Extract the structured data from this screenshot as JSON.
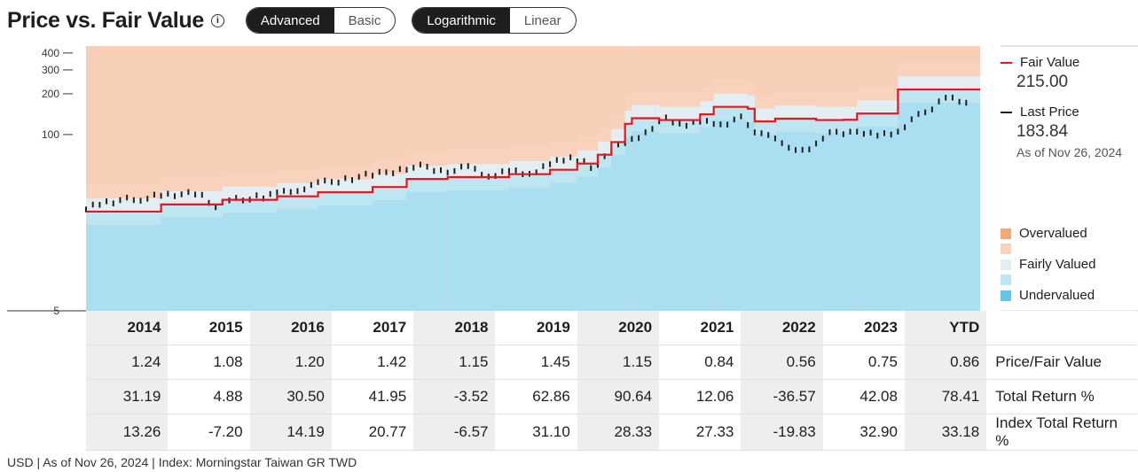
{
  "header": {
    "title": "Price vs. Fair Value",
    "info_icon": "i",
    "toggle_view": {
      "options": [
        "Advanced",
        "Basic"
      ],
      "selected": "Advanced"
    },
    "toggle_scale": {
      "options": [
        "Logarithmic",
        "Linear"
      ],
      "selected": "Logarithmic"
    }
  },
  "legend": {
    "fair_value_label": "Fair Value",
    "fair_value": "215.00",
    "last_price_label": "Last Price",
    "last_price": "183.84",
    "as_of": "As of Nov 26, 2024",
    "bands": [
      {
        "label": "Overvalued",
        "color": "#f4a777"
      },
      {
        "label": "",
        "color": "#f8d2bd"
      },
      {
        "label": "Fairly Valued",
        "color": "#e3eef3"
      },
      {
        "label": "",
        "color": "#bde6f2"
      },
      {
        "label": "Undervalued",
        "color": "#63c6e8"
      }
    ]
  },
  "chart_data": {
    "type": "line",
    "y_scale": "log",
    "y_ticks": [
      400,
      300,
      200,
      100,
      5
    ],
    "ylim": [
      5,
      450
    ],
    "periods": [
      "2014",
      "2015",
      "2016",
      "2017",
      "2018",
      "2019",
      "2020",
      "2021",
      "2022",
      "2023",
      "YTD"
    ],
    "series": [
      {
        "name": "Fair Value",
        "color": "#e8141e",
        "steps": [
          [
            "2014-01",
            27
          ],
          [
            "2014-12",
            30.5
          ],
          [
            "2015-09",
            33
          ],
          [
            "2016-05",
            35
          ],
          [
            "2016-11",
            37.5
          ],
          [
            "2017-07",
            41
          ],
          [
            "2017-12",
            47
          ],
          [
            "2018-06",
            48.5
          ],
          [
            "2019-03",
            51
          ],
          [
            "2019-09",
            55
          ],
          [
            "2020-01",
            61
          ],
          [
            "2020-04",
            71
          ],
          [
            "2020-06",
            88
          ],
          [
            "2020-08",
            120
          ],
          [
            "2020-09",
            132
          ],
          [
            "2021-01",
            128
          ],
          [
            "2021-07",
            141
          ],
          [
            "2021-09",
            160
          ],
          [
            "2022-02",
            155
          ],
          [
            "2022-03",
            125
          ],
          [
            "2022-06",
            131
          ],
          [
            "2022-12",
            128
          ],
          [
            "2023-04",
            128.5
          ],
          [
            "2023-06",
            143
          ],
          [
            "2023-12",
            215
          ]
        ]
      },
      {
        "name": "Last Price",
        "color": "#1e1e1e",
        "points": [
          [
            "2014-01",
            28
          ],
          [
            "2014-04",
            32
          ],
          [
            "2014-10",
            34
          ],
          [
            "2015-01",
            36
          ],
          [
            "2015-03",
            37
          ],
          [
            "2015-06",
            35
          ],
          [
            "2015-08",
            30
          ],
          [
            "2015-11",
            33
          ],
          [
            "2016-03",
            35
          ],
          [
            "2016-06",
            37
          ],
          [
            "2016-09",
            41
          ],
          [
            "2016-12",
            44
          ],
          [
            "2017-04",
            48
          ],
          [
            "2017-08",
            51
          ],
          [
            "2017-12",
            57
          ],
          [
            "2018-02",
            58
          ],
          [
            "2018-06",
            54
          ],
          [
            "2018-09",
            57
          ],
          [
            "2018-12",
            50
          ],
          [
            "2019-03",
            53
          ],
          [
            "2019-06",
            52
          ],
          [
            "2019-09",
            60
          ],
          [
            "2019-12",
            68
          ],
          [
            "2020-02",
            64
          ],
          [
            "2020-03",
            56
          ],
          [
            "2020-06",
            77
          ],
          [
            "2020-09",
            91
          ],
          [
            "2020-12",
            113
          ],
          [
            "2021-02",
            130
          ],
          [
            "2021-05",
            120
          ],
          [
            "2021-08",
            122
          ],
          [
            "2021-11",
            123
          ],
          [
            "2022-01",
            131
          ],
          [
            "2022-03",
            108
          ],
          [
            "2022-06",
            90
          ],
          [
            "2022-09",
            80
          ],
          [
            "2022-11",
            75
          ],
          [
            "2022-12",
            89
          ],
          [
            "2023-02",
            101
          ],
          [
            "2023-06",
            108
          ],
          [
            "2023-09",
            96
          ],
          [
            "2023-12",
            107
          ],
          [
            "2024-02",
            128
          ],
          [
            "2024-04",
            147
          ],
          [
            "2024-07",
            187
          ],
          [
            "2024-09",
            174
          ],
          [
            "2024-11",
            183.84
          ]
        ]
      }
    ]
  },
  "table": {
    "years": [
      "2014",
      "2015",
      "2016",
      "2017",
      "2018",
      "2019",
      "2020",
      "2021",
      "2022",
      "2023",
      "YTD"
    ],
    "rows": [
      {
        "label": "Price/Fair Value",
        "values": [
          "1.24",
          "1.08",
          "1.20",
          "1.42",
          "1.15",
          "1.45",
          "1.15",
          "0.84",
          "0.56",
          "0.75",
          "0.86"
        ]
      },
      {
        "label": "Total Return %",
        "values": [
          "31.19",
          "4.88",
          "30.50",
          "41.95",
          "-3.52",
          "62.86",
          "90.64",
          "12.06",
          "-36.57",
          "42.08",
          "78.41"
        ]
      },
      {
        "label": "Index Total Return %",
        "values": [
          "13.26",
          "-7.20",
          "14.19",
          "20.77",
          "-6.57",
          "31.10",
          "28.33",
          "27.33",
          "-19.83",
          "32.90",
          "33.18"
        ]
      }
    ]
  },
  "footer": "USD | As of Nov 26, 2024 | Index: Morningstar Taiwan GR TWD"
}
